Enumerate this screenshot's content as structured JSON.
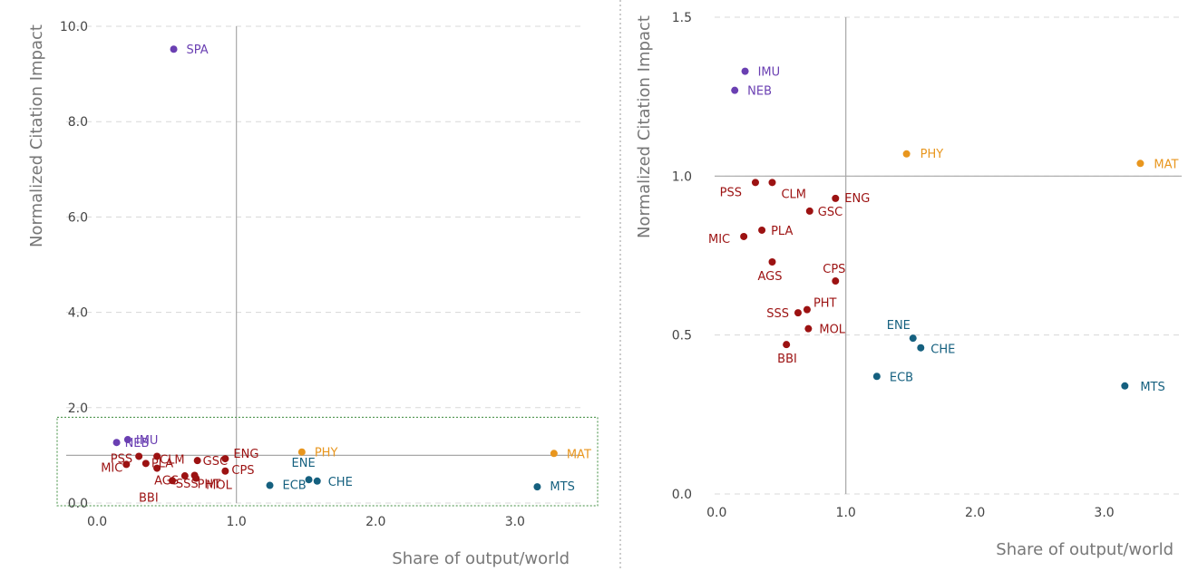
{
  "colors": {
    "purple": "#6a3fb2",
    "red": "#9c1212",
    "orange": "#e8961e",
    "teal": "#15607f",
    "grid": "#d8d8d8",
    "axis": "#a8a8a8",
    "zoom_box": "#3d8b3d"
  },
  "chart_data": [
    {
      "type": "scatter",
      "title": "",
      "xlabel": "Share of output/world",
      "ylabel": "Normalized Citation Impact",
      "xlim": [
        -0.3,
        3.6
      ],
      "ylim": [
        0.0,
        10.0
      ],
      "x_ticks": [
        "0.0",
        "1.0",
        "2.0",
        "3.0"
      ],
      "y_ticks": [
        "0.0",
        "2.0",
        "4.0",
        "6.0",
        "8.0",
        "10.0"
      ],
      "reference_lines": {
        "x": 1.0,
        "y": 1.0
      },
      "grid": "horizontal dashed",
      "zoom_region": {
        "x": [
          -0.3,
          3.6
        ],
        "y": [
          0.0,
          1.8
        ]
      },
      "points": [
        {
          "label": "SPA",
          "x": 0.55,
          "y": 9.52,
          "group": "purple"
        },
        {
          "label": "IMU",
          "x": 0.22,
          "y": 1.33,
          "group": "purple"
        },
        {
          "label": "NEB",
          "x": 0.14,
          "y": 1.27,
          "group": "purple"
        },
        {
          "label": "PHY",
          "x": 1.47,
          "y": 1.07,
          "group": "orange"
        },
        {
          "label": "MAT",
          "x": 3.28,
          "y": 1.04,
          "group": "orange"
        },
        {
          "label": "PSS",
          "x": 0.3,
          "y": 0.98,
          "group": "red"
        },
        {
          "label": "CLM",
          "x": 0.43,
          "y": 0.98,
          "group": "red"
        },
        {
          "label": "ENG",
          "x": 0.92,
          "y": 0.93,
          "group": "red"
        },
        {
          "label": "GSC",
          "x": 0.72,
          "y": 0.89,
          "group": "red"
        },
        {
          "label": "PLA",
          "x": 0.35,
          "y": 0.83,
          "group": "red"
        },
        {
          "label": "MIC",
          "x": 0.21,
          "y": 0.81,
          "group": "red"
        },
        {
          "label": "AGS",
          "x": 0.43,
          "y": 0.73,
          "group": "red"
        },
        {
          "label": "CPS",
          "x": 0.92,
          "y": 0.67,
          "group": "red"
        },
        {
          "label": "PHT",
          "x": 0.7,
          "y": 0.58,
          "group": "red"
        },
        {
          "label": "SSS",
          "x": 0.63,
          "y": 0.57,
          "group": "red"
        },
        {
          "label": "MOL",
          "x": 0.71,
          "y": 0.52,
          "group": "red"
        },
        {
          "label": "BBI",
          "x": 0.54,
          "y": 0.47,
          "group": "red"
        },
        {
          "label": "ENE",
          "x": 1.52,
          "y": 0.49,
          "group": "teal"
        },
        {
          "label": "CHE",
          "x": 1.58,
          "y": 0.46,
          "group": "teal"
        },
        {
          "label": "ECB",
          "x": 1.24,
          "y": 0.37,
          "group": "teal"
        },
        {
          "label": "MTS",
          "x": 3.16,
          "y": 0.34,
          "group": "teal"
        }
      ]
    },
    {
      "type": "scatter",
      "title": "",
      "xlabel": "Share of output/world",
      "ylabel": "Normalized Citation Impact",
      "xlim": [
        -0.1,
        3.6
      ],
      "ylim": [
        0.0,
        1.5
      ],
      "x_ticks": [
        "0.0",
        "1.0",
        "2.0",
        "3.0"
      ],
      "y_ticks": [
        "0.0",
        "0.5",
        "1.0",
        "1.5"
      ],
      "reference_lines": {
        "x": 1.0,
        "y": 1.0
      },
      "grid": "horizontal dashed",
      "points": [
        {
          "label": "IMU",
          "x": 0.22,
          "y": 1.33,
          "group": "purple"
        },
        {
          "label": "NEB",
          "x": 0.14,
          "y": 1.27,
          "group": "purple"
        },
        {
          "label": "PHY",
          "x": 1.47,
          "y": 1.07,
          "group": "orange"
        },
        {
          "label": "MAT",
          "x": 3.28,
          "y": 1.04,
          "group": "orange"
        },
        {
          "label": "PSS",
          "x": 0.3,
          "y": 0.98,
          "group": "red"
        },
        {
          "label": "CLM",
          "x": 0.43,
          "y": 0.98,
          "group": "red"
        },
        {
          "label": "ENG",
          "x": 0.92,
          "y": 0.93,
          "group": "red"
        },
        {
          "label": "GSC",
          "x": 0.72,
          "y": 0.89,
          "group": "red"
        },
        {
          "label": "PLA",
          "x": 0.35,
          "y": 0.83,
          "group": "red"
        },
        {
          "label": "MIC",
          "x": 0.21,
          "y": 0.81,
          "group": "red"
        },
        {
          "label": "AGS",
          "x": 0.43,
          "y": 0.73,
          "group": "red"
        },
        {
          "label": "CPS",
          "x": 0.92,
          "y": 0.67,
          "group": "red"
        },
        {
          "label": "PHT",
          "x": 0.7,
          "y": 0.58,
          "group": "red"
        },
        {
          "label": "SSS",
          "x": 0.63,
          "y": 0.57,
          "group": "red"
        },
        {
          "label": "MOL",
          "x": 0.71,
          "y": 0.52,
          "group": "red"
        },
        {
          "label": "BBI",
          "x": 0.54,
          "y": 0.47,
          "group": "red"
        },
        {
          "label": "ENE",
          "x": 1.52,
          "y": 0.49,
          "group": "teal"
        },
        {
          "label": "CHE",
          "x": 1.58,
          "y": 0.46,
          "group": "teal"
        },
        {
          "label": "ECB",
          "x": 1.24,
          "y": 0.37,
          "group": "teal"
        },
        {
          "label": "MTS",
          "x": 3.16,
          "y": 0.34,
          "group": "teal"
        }
      ]
    }
  ]
}
